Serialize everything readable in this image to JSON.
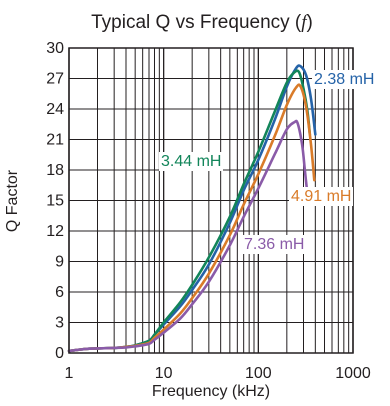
{
  "chart_data": {
    "type": "line",
    "title_prefix": "Typical Q vs Frequency (",
    "title_symbol": "f",
    "title_suffix": ")",
    "xlabel": "Frequency (kHz)",
    "ylabel": "Q Factor",
    "x_scale": "log",
    "xlim": [
      1,
      1000
    ],
    "ylim": [
      0,
      30
    ],
    "x_ticks": [
      1,
      10,
      100,
      1000
    ],
    "x_tick_labels": [
      "1",
      "10",
      "100",
      "1000"
    ],
    "y_ticks": [
      0,
      3,
      6,
      9,
      12,
      15,
      18,
      21,
      24,
      27,
      30
    ],
    "y_tick_labels": [
      "0",
      "3",
      "6",
      "9",
      "12",
      "15",
      "18",
      "21",
      "24",
      "27",
      "30"
    ],
    "grid": true,
    "series": [
      {
        "name": "2.38 mH",
        "color": "#2563a8",
        "points": [
          [
            1,
            0.2
          ],
          [
            1.5,
            0.4
          ],
          [
            2,
            0.45
          ],
          [
            3,
            0.5
          ],
          [
            4,
            0.6
          ],
          [
            5,
            0.75
          ],
          [
            7,
            1.2
          ],
          [
            8,
            1.8
          ],
          [
            10,
            2.8
          ],
          [
            15,
            4.6
          ],
          [
            20,
            6.2
          ],
          [
            30,
            8.7
          ],
          [
            50,
            12.8
          ],
          [
            70,
            16.0
          ],
          [
            100,
            19.0
          ],
          [
            150,
            23.0
          ],
          [
            200,
            26.2
          ],
          [
            250,
            28.0
          ],
          [
            280,
            28.2
          ],
          [
            320,
            27.3
          ],
          [
            360,
            25.0
          ],
          [
            400,
            21.5
          ]
        ]
      },
      {
        "name": "3.44 mH",
        "color": "#12855a",
        "points": [
          [
            1,
            0.2
          ],
          [
            1.5,
            0.4
          ],
          [
            2,
            0.45
          ],
          [
            3,
            0.5
          ],
          [
            4,
            0.6
          ],
          [
            5,
            0.75
          ],
          [
            7,
            1.2
          ],
          [
            8,
            1.8
          ],
          [
            10,
            3.0
          ],
          [
            15,
            5.0
          ],
          [
            20,
            6.7
          ],
          [
            30,
            9.4
          ],
          [
            50,
            13.4
          ],
          [
            70,
            16.6
          ],
          [
            100,
            19.8
          ],
          [
            150,
            23.8
          ],
          [
            200,
            26.6
          ],
          [
            240,
            27.6
          ],
          [
            270,
            27.6
          ],
          [
            300,
            26.0
          ],
          [
            330,
            23.8
          ],
          [
            350,
            21.5
          ]
        ]
      },
      {
        "name": "4.91 mH",
        "color": "#d97b29",
        "points": [
          [
            1,
            0.2
          ],
          [
            1.5,
            0.4
          ],
          [
            2,
            0.45
          ],
          [
            3,
            0.5
          ],
          [
            4,
            0.6
          ],
          [
            5,
            0.7
          ],
          [
            7,
            1.0
          ],
          [
            8,
            1.5
          ],
          [
            10,
            2.3
          ],
          [
            15,
            3.9
          ],
          [
            20,
            5.4
          ],
          [
            30,
            7.8
          ],
          [
            50,
            11.6
          ],
          [
            70,
            14.6
          ],
          [
            100,
            17.6
          ],
          [
            150,
            21.4
          ],
          [
            200,
            24.4
          ],
          [
            250,
            26.1
          ],
          [
            280,
            26.2
          ],
          [
            320,
            24.2
          ],
          [
            360,
            20.5
          ],
          [
            390,
            17.0
          ]
        ]
      },
      {
        "name": "7.36 mH",
        "color": "#8a5ba8",
        "points": [
          [
            1,
            0.2
          ],
          [
            1.5,
            0.4
          ],
          [
            2,
            0.45
          ],
          [
            3,
            0.5
          ],
          [
            4,
            0.55
          ],
          [
            5,
            0.65
          ],
          [
            7,
            0.9
          ],
          [
            8,
            1.3
          ],
          [
            10,
            2.0
          ],
          [
            15,
            3.4
          ],
          [
            20,
            4.8
          ],
          [
            30,
            7.0
          ],
          [
            50,
            10.6
          ],
          [
            70,
            13.4
          ],
          [
            100,
            16.2
          ],
          [
            150,
            19.6
          ],
          [
            200,
            22.0
          ],
          [
            240,
            22.7
          ],
          [
            260,
            22.6
          ],
          [
            290,
            20.5
          ],
          [
            310,
            18.0
          ],
          [
            330,
            15.6
          ]
        ]
      }
    ]
  }
}
